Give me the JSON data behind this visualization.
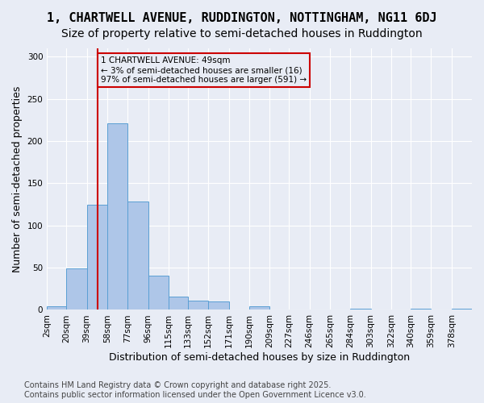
{
  "title": "1, CHARTWELL AVENUE, RUDDINGTON, NOTTINGHAM, NG11 6DJ",
  "subtitle": "Size of property relative to semi-detached houses in Ruddington",
  "xlabel": "Distribution of semi-detached houses by size in Ruddington",
  "ylabel": "Number of semi-detached properties",
  "footnote1": "Contains HM Land Registry data © Crown copyright and database right 2025.",
  "footnote2": "Contains public sector information licensed under the Open Government Licence v3.0.",
  "annotation_title": "1 CHARTWELL AVENUE: 49sqm",
  "annotation_line1": "← 3% of semi-detached houses are smaller (16)",
  "annotation_line2": "97% of semi-detached houses are larger (591) →",
  "property_size": 49,
  "bar_edges": [
    2,
    20,
    39,
    58,
    77,
    96,
    115,
    133,
    152,
    171,
    190,
    209,
    227,
    246,
    265,
    284,
    303,
    322,
    340,
    359,
    378,
    397
  ],
  "bar_heights": [
    4,
    49,
    125,
    221,
    128,
    41,
    16,
    11,
    10,
    0,
    4,
    0,
    0,
    0,
    0,
    1,
    0,
    0,
    1,
    0,
    1
  ],
  "bar_color": "#aec6e8",
  "bar_edge_color": "#5a9fd4",
  "vline_color": "#cc0000",
  "annotation_box_color": "#cc0000",
  "background_color": "#e8ecf5",
  "ylim": [
    0,
    310
  ],
  "yticks": [
    0,
    50,
    100,
    150,
    200,
    250,
    300
  ],
  "title_fontsize": 11,
  "subtitle_fontsize": 10,
  "axis_fontsize": 9,
  "tick_fontsize": 7.5,
  "footnote_fontsize": 7
}
